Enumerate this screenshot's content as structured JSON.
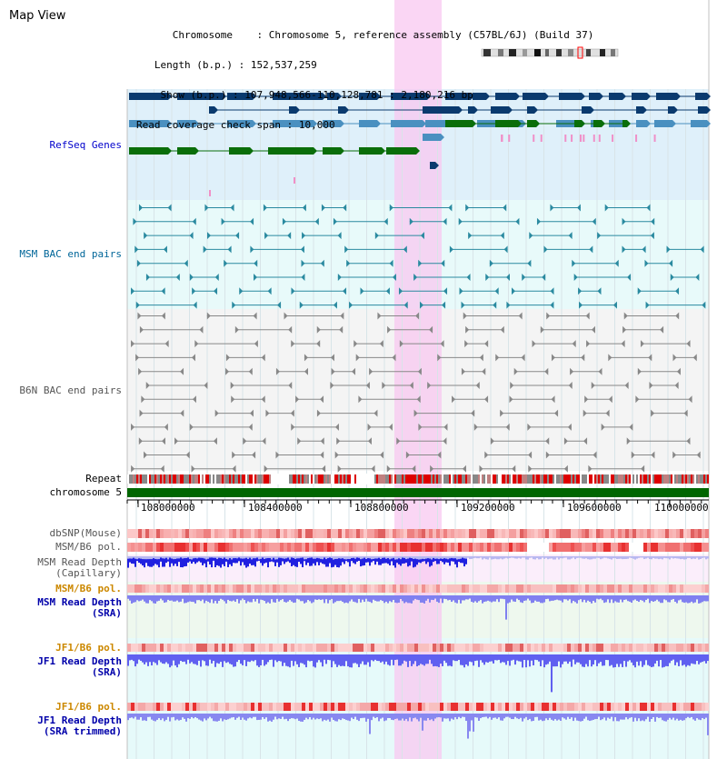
{
  "title": "Map View",
  "info": {
    "chromosome_label": "Chromosome",
    "chromosome_value": "Chromosome 5, reference assembly (C57BL/6J) (Build 37)",
    "length_label": "Length (b.p.)",
    "length_value": "152,537,259",
    "show_label": "Show (b.p.)",
    "show_value": "107,948,566-110,128,781 : 2,180,216 bp",
    "coverage_label": "Read coverage check span",
    "coverage_value": "10,000"
  },
  "tracks": {
    "refseq": "RefSeq Genes",
    "msm_bac": "MSM BAC end pairs",
    "b6n_bac": "B6N BAC end pairs",
    "repeat": "Repeat",
    "chromosome": "chromosome 5",
    "dbsnp": "dbSNP(Mouse)",
    "msm_b6_pol_1": "MSM/B6 pol.",
    "msm_depth_cap_1": "MSM Read Depth",
    "msm_depth_cap_2": "(Capillary)",
    "msm_b6_pol_2": "MSM/B6 pol.",
    "msm_depth_sra_1": "MSM Read Depth",
    "msm_depth_sra_2": "(SRA)",
    "jf1_b6_pol_1": "JF1/B6 pol.",
    "jf1_depth_sra_1": "JF1 Read Depth",
    "jf1_depth_sra_2": "(SRA)",
    "jf1_b6_pol_2": "JF1/B6 pol.",
    "jf1_depth_trim_1": "JF1 Read Depth",
    "jf1_depth_trim_2": "(SRA trimmed)"
  },
  "axis": {
    "ticks": [
      "108000000",
      "108400000",
      "108800000",
      "109200000",
      "109600000",
      "110000000"
    ]
  },
  "colors": {
    "refseq_label": "#0000cc",
    "msm_bac_label": "#006699",
    "b6n_bac_label": "#555555",
    "pol_label": "#cc8800",
    "depth_label": "#0000aa",
    "refseq_dark": "#0a3a6e",
    "refseq_mid": "#4a90c0",
    "refseq_green": "#0a6e0a",
    "highlight": "#f8c8f0",
    "chromosome_bar": "#006600"
  }
}
